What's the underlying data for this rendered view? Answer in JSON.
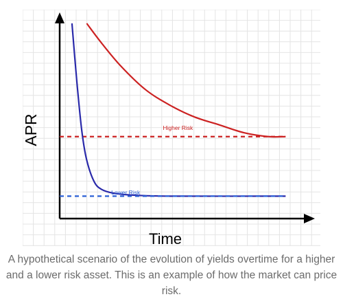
{
  "caption": "A hypothetical scenario of the evolution of yields overtime for a higher and a lower risk asset. This is an example of how the market can price risk.",
  "chart_data": {
    "type": "line",
    "xlabel": "Time",
    "ylabel": "APR",
    "xlim": [
      0,
      1
    ],
    "ylim": [
      0,
      1
    ],
    "grid": true,
    "annotations": [
      {
        "text": "Higher Risk",
        "x": 0.42,
        "y": 0.44,
        "color": "#cc2222"
      },
      {
        "text": "Lower Risk",
        "x": 0.21,
        "y": 0.11,
        "color": "#2a5fd6"
      }
    ],
    "series": [
      {
        "name": "Higher Risk",
        "style": "solid",
        "color": "#cc2222",
        "points": [
          [
            0.11,
            1.0
          ],
          [
            0.17,
            0.9
          ],
          [
            0.25,
            0.78
          ],
          [
            0.35,
            0.66
          ],
          [
            0.45,
            0.58
          ],
          [
            0.55,
            0.52
          ],
          [
            0.65,
            0.48
          ],
          [
            0.75,
            0.44
          ],
          [
            0.85,
            0.42
          ],
          [
            0.92,
            0.42
          ]
        ]
      },
      {
        "name": "Higher Risk asymptote",
        "style": "dashed",
        "color": "#cc2222",
        "points": [
          [
            0.0,
            0.42
          ],
          [
            0.92,
            0.42
          ]
        ]
      },
      {
        "name": "Lower Risk",
        "style": "solid",
        "color": "#2a2aaa",
        "points": [
          [
            0.05,
            1.0
          ],
          [
            0.07,
            0.7
          ],
          [
            0.09,
            0.45
          ],
          [
            0.11,
            0.3
          ],
          [
            0.14,
            0.19
          ],
          [
            0.17,
            0.15
          ],
          [
            0.22,
            0.13
          ],
          [
            0.3,
            0.12
          ],
          [
            0.45,
            0.115
          ],
          [
            0.92,
            0.115
          ]
        ]
      },
      {
        "name": "Lower Risk asymptote",
        "style": "dashed",
        "color": "#2a5fd6",
        "points": [
          [
            0.0,
            0.115
          ],
          [
            0.92,
            0.115
          ]
        ]
      }
    ],
    "colors": {
      "higher_risk": "#cc2222",
      "lower_risk": "#2a2aaa",
      "lower_risk_dashed": "#2a5fd6",
      "axis": "#000000",
      "grid": "#e4e4e4"
    }
  }
}
